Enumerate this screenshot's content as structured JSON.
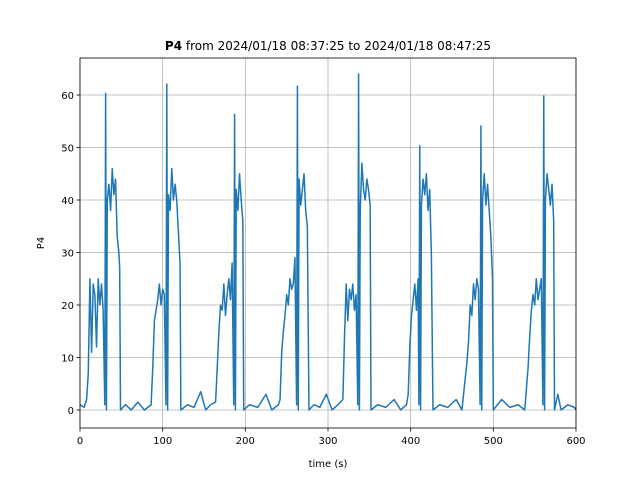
{
  "chart_data": {
    "type": "line",
    "title_bold": "P4",
    "title": "from 2024/01/18 08:37:25 to 2024/01/18 08:47:25",
    "x_label": "time (s)",
    "y_label": "P4",
    "xlim": [
      0,
      600
    ],
    "xticks": [
      0,
      100,
      200,
      300,
      400,
      500,
      600
    ],
    "ylim": [
      -3.43,
      67.05
    ],
    "yticks": [
      0,
      10,
      20,
      30,
      40,
      50,
      60
    ],
    "grid": true,
    "x": [
      0,
      5,
      8,
      10,
      12,
      14,
      16,
      18,
      20,
      22,
      24,
      26,
      28,
      30,
      31,
      32,
      33,
      35,
      37,
      39,
      41,
      43,
      45,
      47,
      48,
      49,
      55,
      62,
      70,
      78,
      86,
      88,
      90,
      92,
      94,
      96,
      98,
      100,
      102,
      104,
      105,
      106,
      107,
      109,
      111,
      113,
      115,
      117,
      119,
      121,
      122,
      130,
      138,
      146,
      152,
      158,
      164,
      166,
      168,
      170,
      172,
      174,
      176,
      178,
      180,
      182,
      184,
      186,
      187,
      188,
      189,
      191,
      193,
      195,
      197,
      198,
      205,
      215,
      225,
      232,
      240,
      242,
      244,
      246,
      248,
      250,
      252,
      254,
      256,
      258,
      260,
      262,
      263,
      264,
      265,
      267,
      269,
      271,
      273,
      275,
      277,
      283,
      290,
      298,
      305,
      312,
      318,
      320,
      322,
      324,
      326,
      328,
      330,
      332,
      334,
      336,
      337,
      338,
      339,
      341,
      343,
      345,
      347,
      349,
      351,
      352,
      360,
      370,
      380,
      388,
      395,
      397,
      399,
      401,
      403,
      405,
      407,
      409,
      410,
      411,
      412,
      413,
      415,
      417,
      419,
      421,
      423,
      425,
      427,
      435,
      445,
      455,
      462,
      468,
      470,
      472,
      474,
      476,
      478,
      480,
      482,
      484,
      485,
      486,
      487,
      489,
      491,
      493,
      495,
      497,
      499,
      500,
      510,
      520,
      530,
      538,
      542,
      544,
      546,
      548,
      550,
      552,
      554,
      556,
      558,
      560,
      561,
      562,
      563,
      565,
      567,
      569,
      571,
      573,
      574,
      578,
      582,
      590,
      598,
      600
    ],
    "series": [
      {
        "name": "P4",
        "color": "#1f77b4",
        "values": [
          1,
          0.5,
          2,
          7,
          25,
          11,
          24,
          22,
          12,
          25,
          20,
          24,
          19,
          1,
          60.3,
          0,
          40,
          43,
          38,
          46,
          41,
          44,
          33,
          30,
          27,
          0,
          1,
          0,
          1.5,
          0,
          1,
          8,
          17,
          19,
          21,
          24,
          20,
          23,
          22,
          1,
          62.1,
          0,
          41,
          38,
          46,
          40,
          43,
          40,
          34,
          28,
          0,
          1,
          0.5,
          3.5,
          0,
          1,
          1.5,
          8,
          15,
          20,
          19,
          24,
          18,
          22,
          25,
          21,
          28,
          1,
          56.3,
          0,
          42,
          38,
          45,
          40,
          36,
          0,
          1,
          0.5,
          3,
          0,
          1,
          2,
          11,
          15,
          18,
          22,
          20,
          25,
          23,
          24,
          29,
          1,
          61.7,
          0,
          44,
          39,
          42,
          45,
          38,
          35,
          0,
          1,
          0.5,
          3,
          0,
          1,
          2,
          14,
          24,
          17,
          23,
          21,
          24,
          19,
          22,
          1,
          64,
          0,
          38,
          47,
          42,
          40,
          44,
          42,
          39,
          0,
          1,
          0.5,
          2,
          0,
          1,
          3,
          12,
          18,
          21,
          24,
          19,
          25,
          1,
          50.3,
          0,
          39,
          44,
          41,
          45,
          38,
          42,
          30,
          0,
          1,
          0.5,
          2,
          0,
          9,
          13,
          20,
          18,
          24,
          21,
          25,
          23,
          1,
          54.1,
          0,
          40,
          45,
          39,
          43,
          38,
          33,
          25,
          0,
          2,
          0.5,
          1,
          0,
          8,
          14,
          19,
          22,
          20,
          25,
          21,
          23,
          25,
          1,
          59.8,
          0,
          40,
          45,
          42,
          39,
          43,
          36,
          0,
          3,
          0,
          1,
          0.5,
          0
        ]
      }
    ]
  }
}
